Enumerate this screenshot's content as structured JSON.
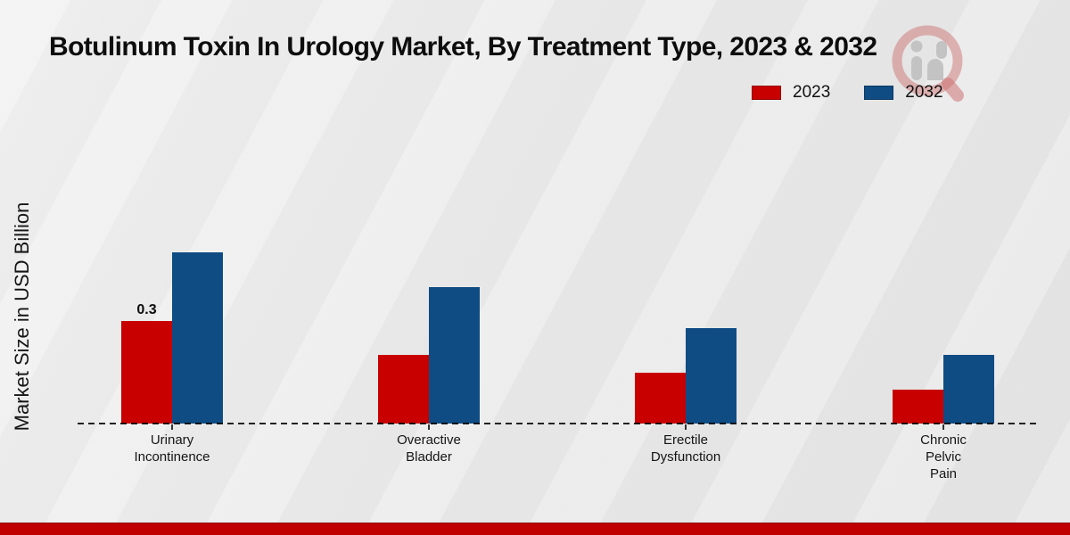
{
  "title": "Botulinum Toxin In Urology Market, By Treatment Type, 2023 & 2032",
  "ylabel": "Market Size in USD Billion",
  "colors": {
    "series_2023": "#c80000",
    "series_2032": "#0f4c84",
    "background": "#eaeaea",
    "footer_band": "#c00000",
    "axis": "#222222"
  },
  "legend": {
    "position": "top-right",
    "items": [
      {
        "label": "2023",
        "color": "#c80000"
      },
      {
        "label": "2032",
        "color": "#0f4c84"
      }
    ]
  },
  "watermark": {
    "name": "brand-logo-watermark"
  },
  "chart_data": {
    "type": "bar",
    "title": "Botulinum Toxin In Urology Market, By Treatment Type, 2023 & 2032",
    "xlabel": "",
    "ylabel": "Market Size in USD Billion",
    "categories": [
      "Urinary Incontinence",
      "Overactive Bladder",
      "Erectile Dysfunction",
      "Chronic Pelvic Pain"
    ],
    "category_lines": [
      [
        "Urinary",
        "Incontinence"
      ],
      [
        "Overactive",
        "Bladder"
      ],
      [
        "Erectile",
        "Dysfunction"
      ],
      [
        "Chronic",
        "Pelvic",
        "Pain"
      ]
    ],
    "series": [
      {
        "name": "2023",
        "color": "#c80000",
        "values": [
          0.3,
          0.2,
          0.15,
          0.1
        ]
      },
      {
        "name": "2032",
        "color": "#0f4c84",
        "values": [
          0.5,
          0.4,
          0.28,
          0.2
        ]
      }
    ],
    "annotations": [
      {
        "text": "0.3",
        "series_index": 0,
        "category_index": 0
      }
    ],
    "ylim": [
      0,
      0.55
    ],
    "grid": false,
    "axis_style": "dashed-baseline",
    "legend_position": "top-right"
  }
}
